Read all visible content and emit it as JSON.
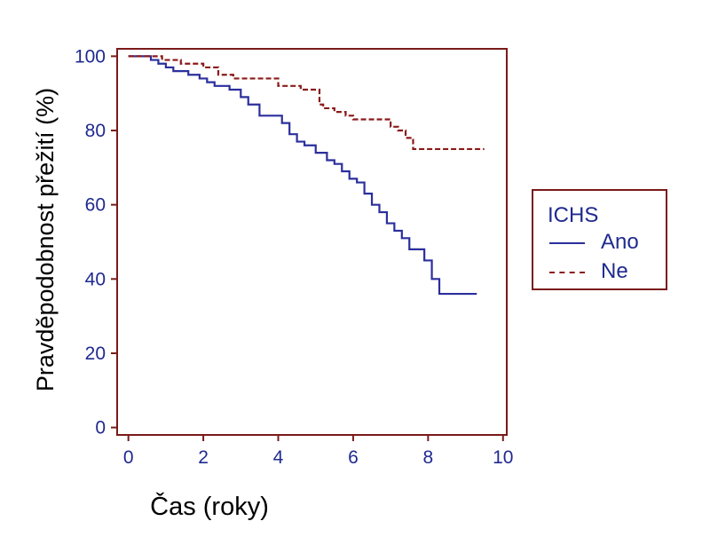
{
  "chart_data": {
    "type": "line",
    "subtype": "kaplan-meier-step",
    "xlabel": "Čas (roky)",
    "ylabel": "Pravděpodobnost přežití (%)",
    "xlim": [
      -0.3,
      10.1
    ],
    "ylim": [
      -2,
      102
    ],
    "xticks": [
      "0",
      "2",
      "4",
      "6",
      "8",
      "10"
    ],
    "yticks": [
      "0",
      "20",
      "40",
      "60",
      "80",
      "100"
    ],
    "grid": false,
    "legend_position": "right",
    "legend_title": "ICHS",
    "series": [
      {
        "name": "Ano",
        "color": "#2b2f9c",
        "style": "solid",
        "x": [
          0,
          0.6,
          0.8,
          1.0,
          1.2,
          1.6,
          1.9,
          2.1,
          2.3,
          2.7,
          3.0,
          3.2,
          3.5,
          4.1,
          4.3,
          4.5,
          4.7,
          5.0,
          5.3,
          5.5,
          5.7,
          5.9,
          6.1,
          6.3,
          6.5,
          6.7,
          6.9,
          7.1,
          7.3,
          7.5,
          7.9,
          8.1,
          8.3,
          8.5,
          9.3
        ],
        "y": [
          100,
          99,
          98,
          97,
          96,
          95,
          94,
          93,
          92,
          91,
          89,
          87,
          84,
          82,
          79,
          77,
          76,
          74,
          72,
          71,
          69,
          67,
          66,
          63,
          60,
          58,
          55,
          53,
          51,
          48,
          45,
          40,
          36,
          36,
          36
        ]
      },
      {
        "name": "Ne",
        "color": "#8b1a1a",
        "style": "dashed",
        "x": [
          0,
          0.9,
          1.1,
          1.4,
          2.0,
          2.4,
          2.8,
          3.2,
          4.0,
          4.6,
          5.0,
          5.1,
          5.2,
          5.5,
          5.8,
          6.0,
          6.6,
          7.0,
          7.2,
          7.4,
          7.6,
          8.0,
          9.5
        ],
        "y": [
          100,
          99,
          99,
          98,
          97,
          95,
          94,
          94,
          92,
          91,
          91,
          87,
          86,
          85,
          84,
          83,
          83,
          81,
          80,
          78,
          75,
          75,
          75
        ]
      }
    ]
  }
}
